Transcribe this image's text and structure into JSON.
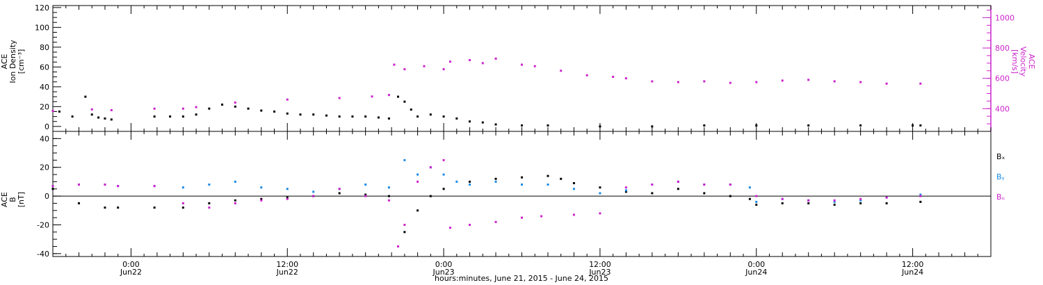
{
  "colors": {
    "density": "#000000",
    "velocity": "#cc22cc",
    "bx": "#000000",
    "by": "#1a8ae6",
    "bz": "#cc22cc",
    "axis": "#000000"
  },
  "xaxis": {
    "title": "hours:minutes, June 21, 2015 - June 24, 2015",
    "range_hours": [
      -6.0,
      66.0
    ],
    "ticks": [
      {
        "t": 0,
        "time": "0:00",
        "day": "Jun22"
      },
      {
        "t": 12,
        "time": "12:00",
        "day": "Jun22"
      },
      {
        "t": 24,
        "time": "0:00",
        "day": "Jun23"
      },
      {
        "t": 36,
        "time": "12:00",
        "day": "Jun23"
      },
      {
        "t": 48,
        "time": "0:00",
        "day": "Jun24"
      },
      {
        "t": 60,
        "time": "12:00",
        "day": "Jun24"
      }
    ]
  },
  "panels": {
    "top": {
      "left_label": [
        "ACE",
        "Ion Density",
        "[cm⁻³]"
      ],
      "right_label": [
        "ACE",
        "Velocity",
        "[km/s]"
      ],
      "left_range": [
        -5,
        122
      ],
      "left_ticks": [
        "0",
        "20",
        "40",
        "60",
        "80",
        "100",
        "120"
      ],
      "right_range": [
        250,
        1080
      ],
      "right_ticks": [
        "400",
        "600",
        "800",
        "1000"
      ]
    },
    "bottom": {
      "left_label": [
        "ACE",
        "B",
        "[nT]"
      ],
      "range": [
        -42,
        45
      ],
      "ticks": [
        "-40",
        "-20",
        "0",
        "20",
        "40"
      ],
      "legend": [
        "Bₓ",
        "Bᵧ",
        "Bᵤ"
      ]
    }
  },
  "chart_data": [
    {
      "type": "scatter",
      "title": "",
      "xlabel": "hours:minutes, June 21, 2015 - June 24, 2015",
      "ylabel": "ACE Ion Density [cm⁻³]",
      "y2label": "ACE Velocity [km/s]",
      "xlim": [
        -6,
        66
      ],
      "ylim": [
        -5,
        122
      ],
      "y2lim": [
        250,
        1080
      ],
      "grid": false,
      "series": [
        {
          "name": "",
          "axis": "left",
          "x": [
            -5.5,
            -4.5,
            -3.5,
            -3.0,
            -2.5,
            -2.0,
            -1.5,
            1.8,
            3.0,
            4.0,
            5.0,
            6.0,
            7.0,
            8.0,
            9.0,
            10.0,
            11.0,
            12.0,
            13.0,
            14.0,
            15.0,
            16.0,
            17.0,
            18.0,
            19.0,
            19.8,
            20.5,
            21.0,
            21.5,
            22.0,
            23.0,
            24.0,
            25.0,
            26.0,
            27.0,
            28.0,
            30.0,
            32.0,
            36.0,
            40.0,
            44.0,
            48.0,
            52.0,
            56.0,
            60.0,
            60.6
          ],
          "y": [
            15,
            10,
            30,
            12,
            9,
            8,
            7,
            10,
            10,
            10,
            12,
            18,
            22,
            20,
            18,
            16,
            15,
            13,
            12,
            12,
            11,
            10,
            10,
            10,
            9,
            8,
            30,
            25,
            17,
            10,
            12,
            10,
            8,
            5,
            4,
            2,
            1,
            1,
            0,
            0,
            1,
            1,
            1,
            1,
            1,
            1
          ]
        },
        {
          "name": "",
          "axis": "right",
          "x": [
            -6.0,
            -3.0,
            -1.5,
            1.8,
            4.0,
            5.0,
            8.0,
            12.0,
            16.0,
            18.5,
            19.8,
            20.2,
            21.0,
            22.5,
            24.0,
            24.5,
            26.0,
            27.0,
            28.0,
            30.0,
            31.0,
            33.0,
            35.0,
            37.0,
            38.0,
            40.0,
            42.0,
            44.0,
            46.0,
            48.0,
            50.0,
            52.0,
            54.0,
            56.0,
            58.0,
            60.6
          ],
          "y": [
            385,
            395,
            390,
            400,
            400,
            410,
            440,
            460,
            470,
            480,
            490,
            690,
            660,
            680,
            660,
            710,
            720,
            700,
            730,
            690,
            680,
            650,
            620,
            610,
            600,
            580,
            575,
            580,
            570,
            575,
            585,
            590,
            580,
            575,
            565,
            565
          ]
        }
      ]
    },
    {
      "type": "scatter",
      "title": "",
      "xlabel": "hours:minutes, June 21, 2015 - June 24, 2015",
      "ylabel": "ACE B [nT]",
      "xlim": [
        -6,
        66
      ],
      "ylim": [
        -42,
        45
      ],
      "grid": false,
      "series": [
        {
          "name": "Bₓ",
          "x": [
            -6.0,
            -4.0,
            -2.0,
            -1.0,
            1.8,
            4.0,
            6.0,
            8.0,
            10.0,
            12.0,
            14.0,
            16.0,
            18.0,
            19.8,
            21.0,
            22.0,
            23.0,
            24.0,
            26.0,
            28.0,
            30.0,
            32.0,
            33.0,
            34.0,
            36.0,
            38.0,
            40.0,
            42.0,
            44.0,
            46.0,
            47.5,
            48.0,
            50.0,
            52.0,
            54.0,
            56.0,
            58.0,
            60.6
          ],
          "y": [
            5,
            -5,
            -8,
            -8,
            -8,
            -8,
            -5,
            -3,
            -2,
            -1,
            0,
            2,
            1,
            0,
            -25,
            -10,
            0,
            5,
            10,
            12,
            13,
            14,
            12,
            9,
            6,
            3,
            2,
            5,
            2,
            0,
            -2,
            -6,
            -5,
            -5,
            -6,
            -5,
            -5,
            -4
          ]
        },
        {
          "name": "Bᵧ",
          "x": [
            -6.0,
            -4.0,
            -2.0,
            -1.0,
            1.8,
            4.0,
            6.0,
            8.0,
            10.0,
            12.0,
            14.0,
            16.0,
            18.0,
            19.8,
            21.0,
            22.0,
            23.0,
            24.0,
            25.0,
            26.0,
            28.0,
            30.0,
            32.0,
            34.0,
            36.0,
            38.0,
            40.0,
            42.0,
            44.0,
            46.0,
            47.5,
            48.0,
            50.0,
            52.0,
            54.0,
            56.0,
            58.0,
            60.6
          ],
          "y": [
            7,
            8,
            8,
            7,
            7,
            6,
            8,
            10,
            6,
            5,
            3,
            5,
            8,
            6,
            25,
            15,
            20,
            15,
            10,
            8,
            10,
            8,
            8,
            5,
            2,
            4,
            8,
            10,
            8,
            8,
            6,
            -4,
            -2,
            -3,
            -4,
            -3,
            -1,
            1
          ]
        },
        {
          "name": "Bᵤ",
          "x": [
            -6.0,
            -4.0,
            -2.0,
            -1.0,
            1.8,
            4.0,
            6.0,
            8.0,
            10.0,
            12.0,
            14.0,
            16.0,
            18.0,
            19.8,
            20.5,
            21.0,
            22.0,
            23.0,
            24.0,
            24.5,
            26.0,
            28.0,
            30.0,
            31.5,
            34.0,
            36.0,
            38.0,
            40.0,
            42.0,
            44.0,
            46.0,
            48.0,
            50.0,
            52.0,
            54.0,
            56.0,
            58.0,
            60.6
          ],
          "y": [
            7,
            8,
            8,
            7,
            7,
            -5,
            -8,
            -5,
            -3,
            -2,
            0,
            5,
            0,
            -3,
            -35,
            -20,
            10,
            20,
            25,
            -22,
            -20,
            -18,
            -15,
            -14,
            -13,
            -12,
            6,
            8,
            10,
            8,
            8,
            0,
            -2,
            -3,
            -3,
            -2,
            -1,
            0
          ]
        }
      ]
    }
  ]
}
